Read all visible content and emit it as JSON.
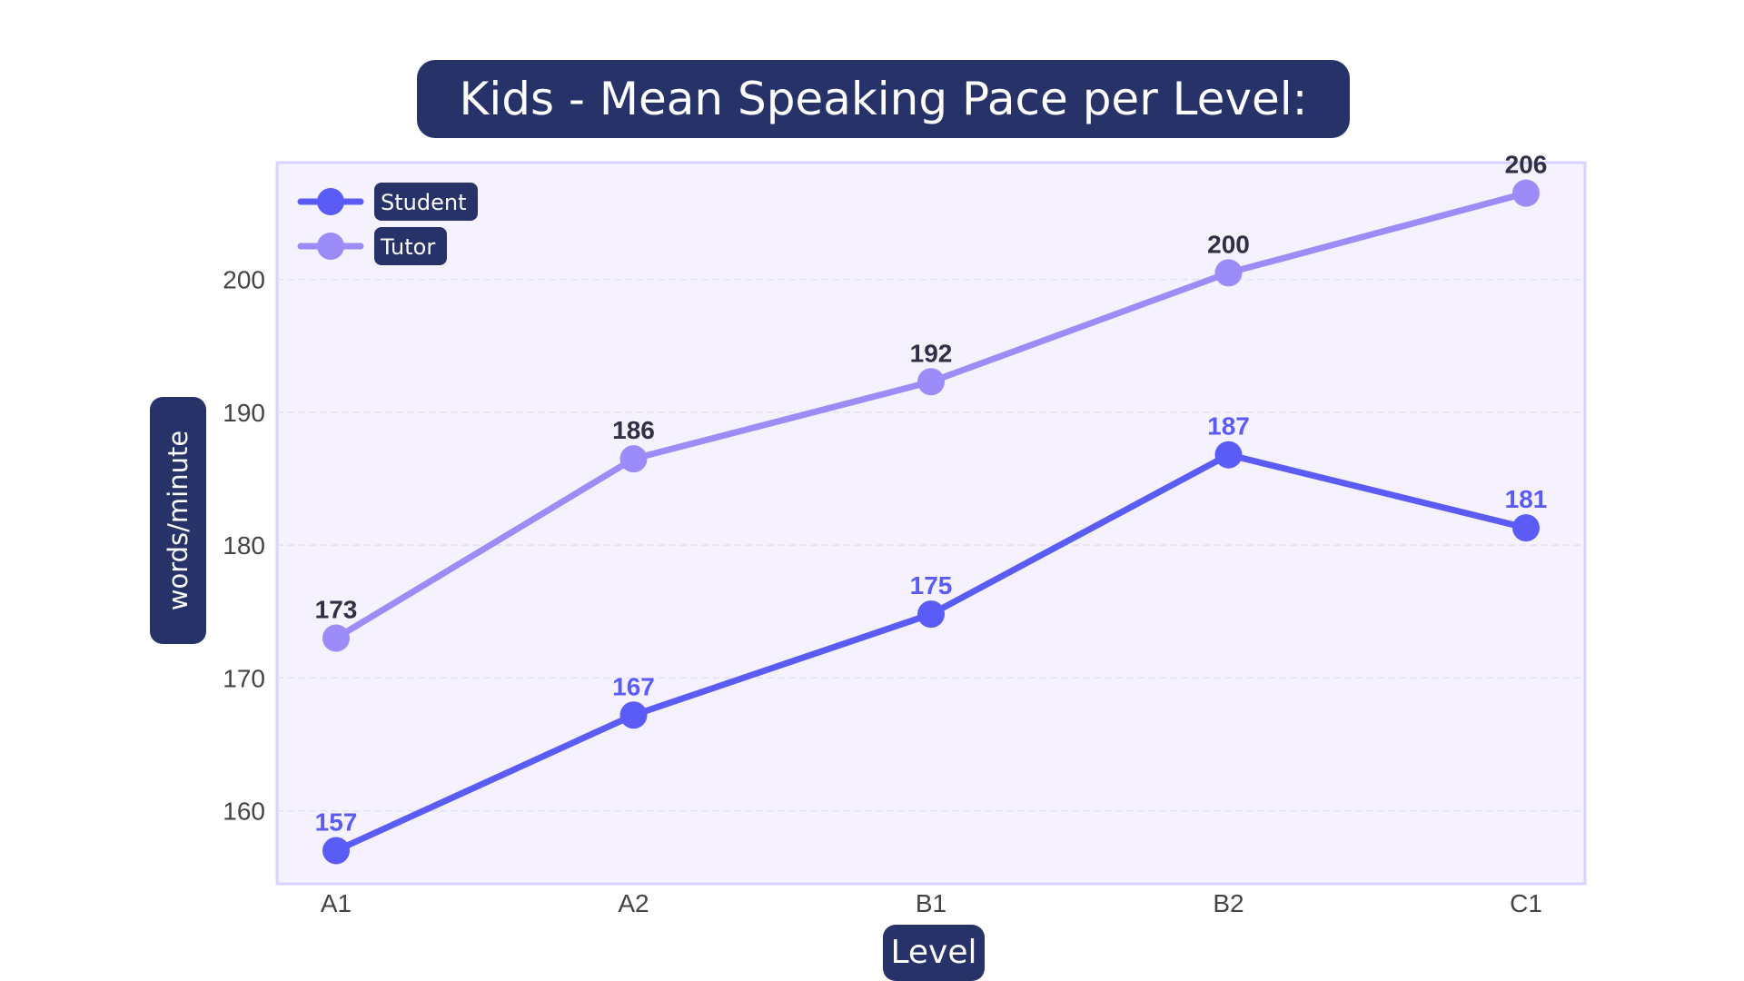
{
  "chart_data": {
    "type": "line",
    "title": "Kids - Mean Speaking Pace per Level:",
    "xlabel": "Level",
    "ylabel": "words/minute",
    "categories": [
      "A1",
      "A2",
      "B1",
      "B2",
      "C1"
    ],
    "ylim": [
      154.5,
      208.8
    ],
    "yticks": [
      160,
      170,
      180,
      190,
      200
    ],
    "grid": "horizontal-dashed",
    "legend_position": "top-left",
    "background_color": "#f5f2fd",
    "frame_color": "#d6d3ff",
    "series": [
      {
        "name": "Student",
        "values": [
          157,
          167.2,
          174.8,
          186.8,
          181.3
        ],
        "labels": [
          "157",
          "167",
          "175",
          "187",
          "181"
        ],
        "color": "#5b5cf6",
        "label_color": "#5b5cf6"
      },
      {
        "name": "Tutor",
        "values": [
          173,
          186.5,
          192.3,
          200.5,
          206.5
        ],
        "labels": [
          "173",
          "186",
          "192",
          "200",
          "206"
        ],
        "color": "#9b8cf7",
        "label_color": "#2f2f45"
      }
    ]
  }
}
